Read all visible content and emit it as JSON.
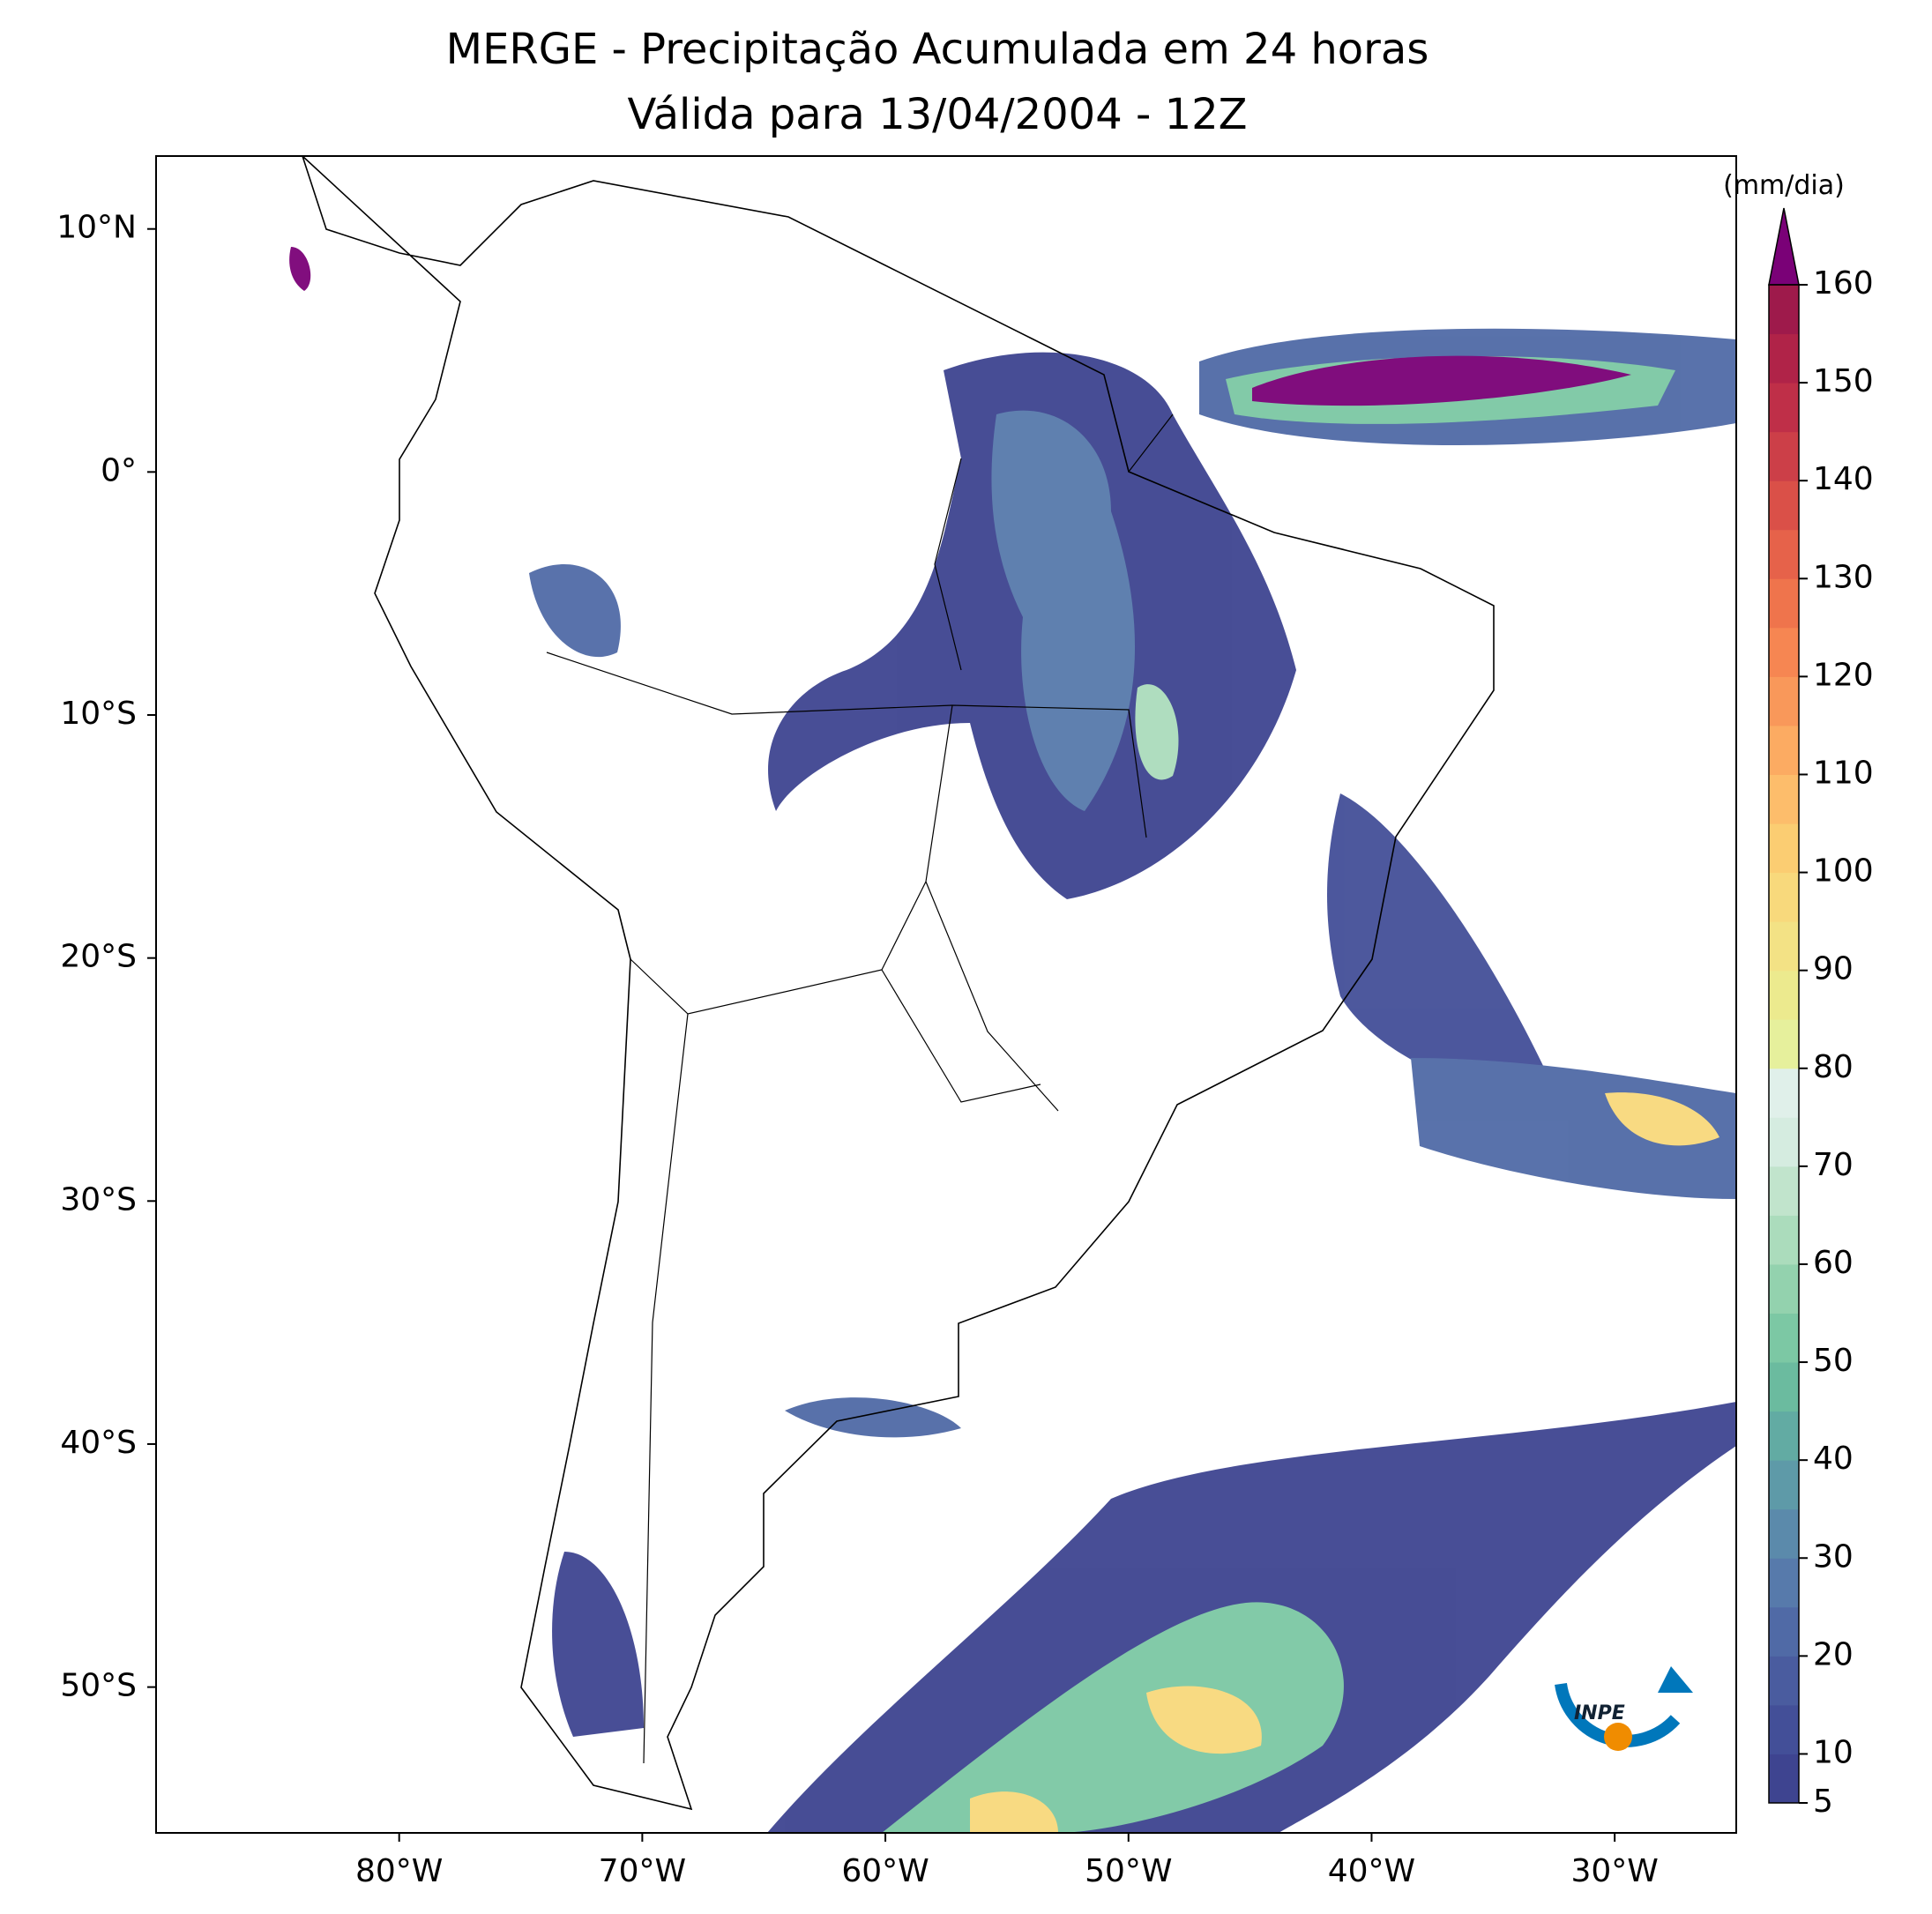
{
  "title": "MERGE - Precipitação Acumulada em 24 horas",
  "subtitle": "Válida para 13/04/2004 - 12Z",
  "map": {
    "xlim": [
      -90,
      -25
    ],
    "ylim": [
      -56,
      13
    ],
    "xticks": [
      {
        "value": -80,
        "label": "80°W"
      },
      {
        "value": -70,
        "label": "70°W"
      },
      {
        "value": -60,
        "label": "60°W"
      },
      {
        "value": -50,
        "label": "50°W"
      },
      {
        "value": -40,
        "label": "40°W"
      },
      {
        "value": -30,
        "label": "30°W"
      }
    ],
    "yticks": [
      {
        "value": 10,
        "label": "10°N"
      },
      {
        "value": 0,
        "label": "0°"
      },
      {
        "value": -10,
        "label": "10°S"
      },
      {
        "value": -20,
        "label": "20°S"
      },
      {
        "value": -30,
        "label": "30°S"
      },
      {
        "value": -40,
        "label": "40°S"
      },
      {
        "value": -50,
        "label": "50°S"
      }
    ]
  },
  "colorbar": {
    "label": "(mm/dia)",
    "lim": [
      5,
      160
    ],
    "ticks": [
      5,
      10,
      20,
      30,
      40,
      50,
      60,
      70,
      80,
      90,
      100,
      110,
      120,
      130,
      140,
      150,
      160
    ],
    "colors": [
      "#3e4490",
      "#434f98",
      "#4a5c9f",
      "#506aa6",
      "#577aab",
      "#5b8aab",
      "#5e9aa8",
      "#62aba3",
      "#6bbb9f",
      "#7cc8a4",
      "#93d2ae",
      "#abdcbc",
      "#c1e4cc",
      "#d5ece0",
      "#e0f0ea",
      "#e6f09c",
      "#ecea8e",
      "#f3e285",
      "#f8d97c",
      "#fbcd72",
      "#fdbd6b",
      "#fcab62",
      "#f9985a",
      "#f68652",
      "#ef744c",
      "#e6624a",
      "#da5048",
      "#cc3f48",
      "#bf2f48",
      "#b02348",
      "#9e1a4b"
    ],
    "extend_color": "#7a0177"
  },
  "logo": "INPE"
}
